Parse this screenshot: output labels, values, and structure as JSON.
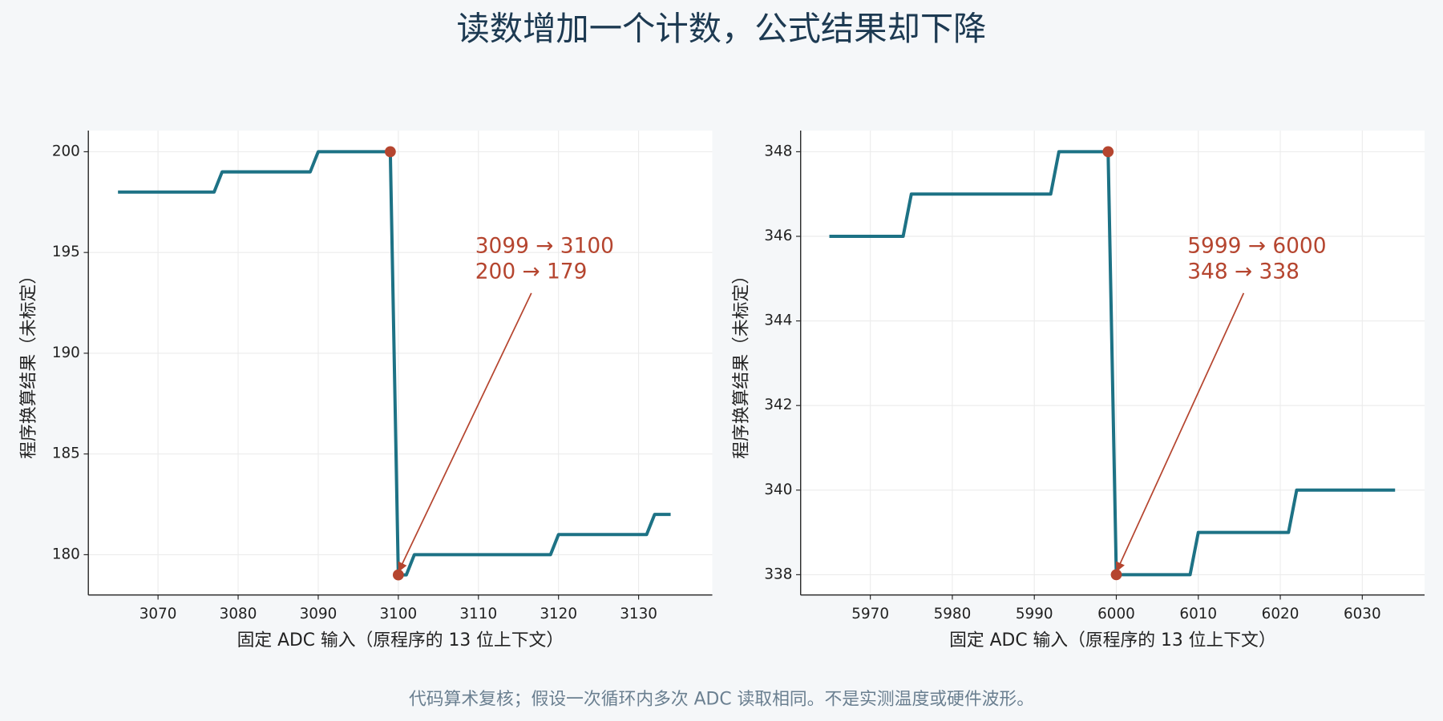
{
  "title": "读数增加一个计数，公式结果却下降",
  "footnote": "代码算术复核；假设一次循环内多次 ADC 读取相同。不是实测温度或硬件波形。",
  "chart_data": [
    {
      "type": "line",
      "xlabel": "固定 ADC 输入（原程序的 13 位上下文）",
      "ylabel": "程序换算结果（未标定）",
      "x": [
        3065,
        3066,
        3067,
        3068,
        3069,
        3070,
        3071,
        3072,
        3073,
        3074,
        3075,
        3076,
        3077,
        3078,
        3079,
        3080,
        3081,
        3082,
        3083,
        3084,
        3085,
        3086,
        3087,
        3088,
        3089,
        3090,
        3091,
        3092,
        3093,
        3094,
        3095,
        3096,
        3097,
        3098,
        3099,
        3100,
        3101,
        3102,
        3103,
        3104,
        3105,
        3106,
        3107,
        3108,
        3109,
        3110,
        3111,
        3112,
        3113,
        3114,
        3115,
        3116,
        3117,
        3118,
        3119,
        3120,
        3121,
        3122,
        3123,
        3124,
        3125,
        3126,
        3127,
        3128,
        3129,
        3130,
        3131,
        3132,
        3133,
        3134
      ],
      "values": [
        198,
        198,
        198,
        198,
        198,
        198,
        198,
        198,
        198,
        198,
        198,
        198,
        198,
        199,
        199,
        199,
        199,
        199,
        199,
        199,
        199,
        199,
        199,
        199,
        199,
        200,
        200,
        200,
        200,
        200,
        200,
        200,
        200,
        200,
        200,
        179,
        179,
        180,
        180,
        180,
        180,
        180,
        180,
        180,
        180,
        180,
        180,
        180,
        180,
        180,
        180,
        180,
        180,
        180,
        180,
        181,
        181,
        181,
        181,
        181,
        181,
        181,
        181,
        181,
        181,
        181,
        181,
        182,
        182,
        182
      ],
      "color": "#1d7285",
      "xlim": [
        3061.3,
        3139.2
      ],
      "xticks": [
        3070,
        3080,
        3090,
        3100,
        3110,
        3120,
        3130
      ],
      "ylim": [
        178,
        201.05
      ],
      "yticks": [
        180,
        185,
        190,
        195,
        200
      ],
      "grid": true,
      "highlight": {
        "color": "#b5452f",
        "points": [
          {
            "x": 3099,
            "y": 200
          },
          {
            "x": 3100,
            "y": 179
          }
        ]
      },
      "annotation": {
        "color": "#b5452f",
        "lines": [
          "3099 → 3100",
          "200 → 179"
        ]
      }
    },
    {
      "type": "line",
      "xlabel": "固定 ADC 输入（原程序的 13 位上下文）",
      "ylabel": "程序换算结果（未标定）",
      "x": [
        5965,
        5966,
        5967,
        5968,
        5969,
        5970,
        5971,
        5972,
        5973,
        5974,
        5975,
        5976,
        5977,
        5978,
        5979,
        5980,
        5981,
        5982,
        5983,
        5984,
        5985,
        5986,
        5987,
        5988,
        5989,
        5990,
        5991,
        5992,
        5993,
        5994,
        5995,
        5996,
        5997,
        5998,
        5999,
        6000,
        6001,
        6002,
        6003,
        6004,
        6005,
        6006,
        6007,
        6008,
        6009,
        6010,
        6011,
        6012,
        6013,
        6014,
        6015,
        6016,
        6017,
        6018,
        6019,
        6020,
        6021,
        6022,
        6023,
        6024,
        6025,
        6026,
        6027,
        6028,
        6029,
        6030,
        6031,
        6032,
        6033,
        6034
      ],
      "values": [
        346,
        346,
        346,
        346,
        346,
        346,
        346,
        346,
        346,
        346,
        347,
        347,
        347,
        347,
        347,
        347,
        347,
        347,
        347,
        347,
        347,
        347,
        347,
        347,
        347,
        347,
        347,
        347,
        348,
        348,
        348,
        348,
        348,
        348,
        348,
        338,
        338,
        338,
        338,
        338,
        338,
        338,
        338,
        338,
        338,
        339,
        339,
        339,
        339,
        339,
        339,
        339,
        339,
        339,
        339,
        339,
        339,
        340,
        340,
        340,
        340,
        340,
        340,
        340,
        340,
        340,
        340,
        340,
        340,
        340
      ],
      "color": "#1d7285",
      "xlim": [
        5961.5,
        6037.6
      ],
      "xticks": [
        5970,
        5980,
        5990,
        6000,
        6010,
        6020,
        6030
      ],
      "ylim": [
        337.52,
        348.5
      ],
      "yticks": [
        338,
        340,
        342,
        344,
        346,
        348
      ],
      "grid": true,
      "highlight": {
        "color": "#b5452f",
        "points": [
          {
            "x": 5999,
            "y": 348
          },
          {
            "x": 6000,
            "y": 338
          }
        ]
      },
      "annotation": {
        "color": "#b5452f",
        "lines": [
          "5999 → 6000",
          "348 → 338"
        ]
      }
    }
  ]
}
